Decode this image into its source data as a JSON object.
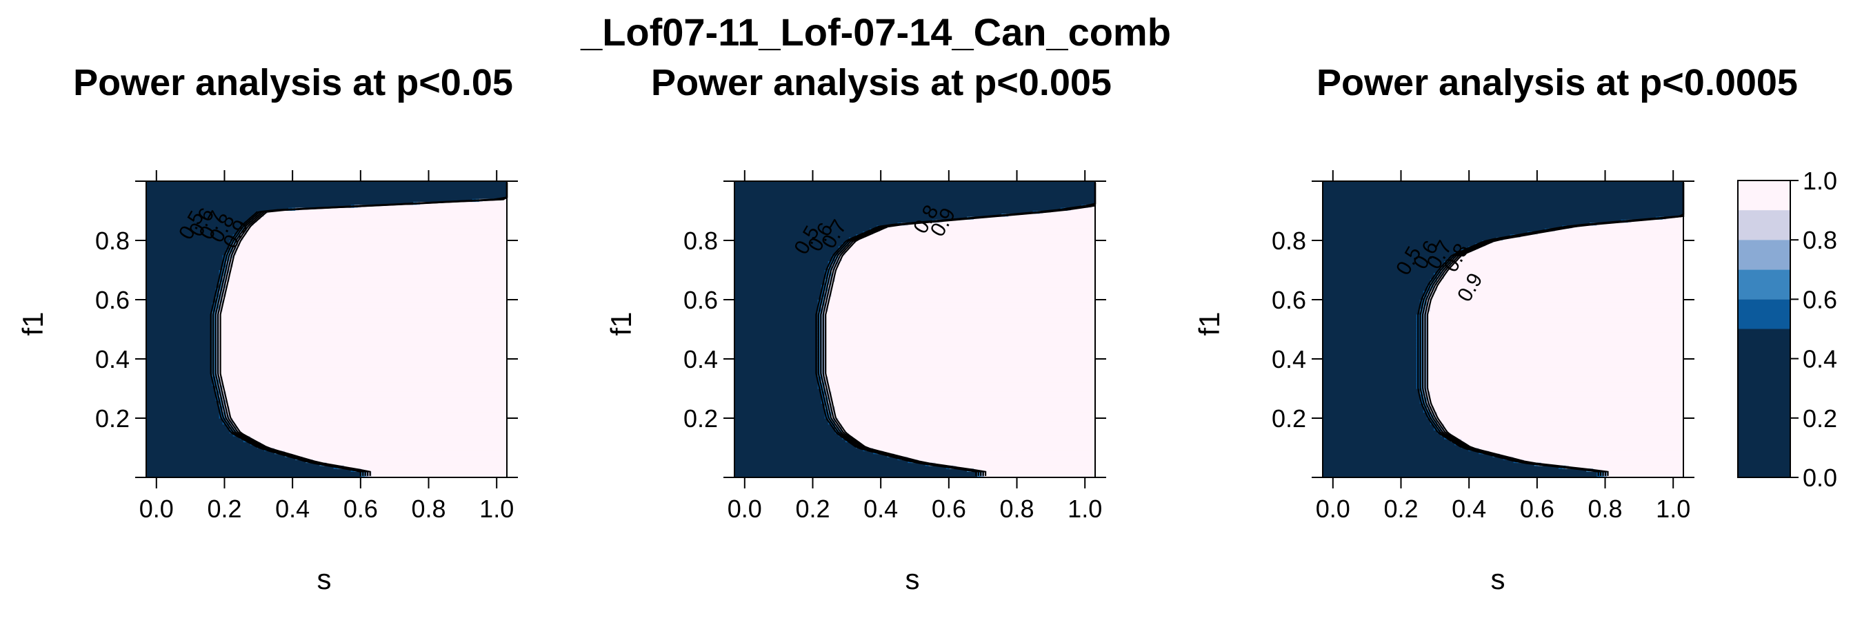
{
  "figure": {
    "title": "_Lof07-11_Lof-07-14_Can_comb"
  },
  "colors": {
    "level_0.0_0.5": "#0a2a49",
    "level_0.5_0.6": "#0c5a9c",
    "level_0.6_0.7": "#3a85bf",
    "level_0.7_0.8": "#8aaad4",
    "level_0.8_0.9": "#d0d1e6",
    "level_0.9_1.0": "#fff4fb",
    "contour_line": "#000000"
  },
  "chart_data": [
    {
      "type": "heatmap",
      "title": "Power analysis at p<0.05",
      "xlabel": "s",
      "ylabel": "f1",
      "xlim": [
        -0.03,
        1.03
      ],
      "ylim": [
        0.0,
        1.0
      ],
      "x_ticks": [
        "0.0",
        "0.2",
        "0.4",
        "0.6",
        "0.8",
        "1.0"
      ],
      "y_ticks": [
        "0.2",
        "0.4",
        "0.6",
        "0.8"
      ],
      "f1_grid": [
        0.02,
        0.05,
        0.1,
        0.15,
        0.2,
        0.25,
        0.3,
        0.35,
        0.4,
        0.45,
        0.5,
        0.55,
        0.6,
        0.65,
        0.7,
        0.75,
        0.8,
        0.85,
        0.9,
        0.95
      ],
      "s_power_threshold": [
        0.6,
        0.45,
        0.3,
        0.22,
        0.19,
        0.18,
        0.17,
        0.16,
        0.16,
        0.16,
        0.16,
        0.16,
        0.17,
        0.18,
        0.19,
        0.2,
        0.22,
        0.25,
        0.3,
        1.2
      ],
      "transition_width": 0.07,
      "contour_levels": [
        0.5,
        0.6,
        0.7,
        0.8,
        0.9
      ],
      "contour_labels": [
        "0.5",
        "0.6",
        "0.7",
        "0.8",
        "0.9"
      ],
      "contour_label_positions": [
        [
          0.12,
          0.84
        ],
        [
          0.15,
          0.85
        ],
        [
          0.18,
          0.84
        ],
        [
          0.21,
          0.83
        ],
        [
          0.25,
          0.81
        ]
      ]
    },
    {
      "type": "heatmap",
      "title": "Power analysis at p<0.005",
      "xlabel": "s",
      "ylabel": "f1",
      "xlim": [
        -0.03,
        1.03
      ],
      "ylim": [
        0.0,
        1.0
      ],
      "x_ticks": [
        "0.0",
        "0.2",
        "0.4",
        "0.6",
        "0.8",
        "1.0"
      ],
      "y_ticks": [
        "0.2",
        "0.4",
        "0.6",
        "0.8"
      ],
      "f1_grid": [
        0.02,
        0.05,
        0.1,
        0.15,
        0.2,
        0.25,
        0.3,
        0.35,
        0.4,
        0.45,
        0.5,
        0.55,
        0.6,
        0.65,
        0.7,
        0.75,
        0.8,
        0.85,
        0.9,
        0.95
      ],
      "s_power_threshold": [
        0.68,
        0.5,
        0.33,
        0.27,
        0.24,
        0.23,
        0.22,
        0.21,
        0.21,
        0.21,
        0.21,
        0.21,
        0.22,
        0.23,
        0.24,
        0.26,
        0.3,
        0.4,
        0.9,
        1.2
      ],
      "transition_width": 0.07,
      "contour_levels": [
        0.5,
        0.6,
        0.7,
        0.8,
        0.9
      ],
      "contour_labels": [
        "0.5",
        "0.6",
        "0.7",
        "0.8",
        "0.9"
      ],
      "contour_label_positions": [
        [
          0.2,
          0.79
        ],
        [
          0.24,
          0.8
        ],
        [
          0.28,
          0.81
        ],
        [
          0.55,
          0.86
        ],
        [
          0.6,
          0.85
        ]
      ]
    },
    {
      "type": "heatmap",
      "title": "Power analysis at p<0.0005",
      "xlabel": "s",
      "ylabel": "f1",
      "xlim": [
        -0.03,
        1.03
      ],
      "ylim": [
        0.0,
        1.0
      ],
      "x_ticks": [
        "0.0",
        "0.2",
        "0.4",
        "0.6",
        "0.8",
        "1.0"
      ],
      "y_ticks": [
        "0.2",
        "0.4",
        "0.6",
        "0.8"
      ],
      "f1_grid": [
        0.02,
        0.05,
        0.1,
        0.15,
        0.2,
        0.25,
        0.3,
        0.35,
        0.4,
        0.45,
        0.5,
        0.55,
        0.6,
        0.65,
        0.7,
        0.75,
        0.8,
        0.85,
        0.9,
        0.95
      ],
      "s_power_threshold": [
        0.78,
        0.55,
        0.38,
        0.31,
        0.28,
        0.26,
        0.25,
        0.25,
        0.25,
        0.25,
        0.25,
        0.25,
        0.26,
        0.28,
        0.31,
        0.35,
        0.45,
        0.7,
        1.2,
        1.2
      ],
      "transition_width": 0.07,
      "contour_levels": [
        0.5,
        0.6,
        0.7,
        0.8,
        0.9
      ],
      "contour_labels": [
        "0.5",
        "0.6",
        "0.7",
        "0.8",
        "0.9"
      ],
      "contour_label_positions": [
        [
          0.24,
          0.72
        ],
        [
          0.29,
          0.74
        ],
        [
          0.33,
          0.74
        ],
        [
          0.38,
          0.73
        ],
        [
          0.42,
          0.63
        ]
      ]
    }
  ],
  "colorkey": {
    "levels": [
      0.0,
      0.5,
      0.6,
      0.7,
      0.8,
      0.9,
      1.0
    ],
    "tick_labels": [
      "0.0",
      "0.2",
      "0.4",
      "0.6",
      "0.8",
      "1.0"
    ],
    "tick_values": [
      0.0,
      0.2,
      0.4,
      0.6,
      0.8,
      1.0
    ]
  }
}
